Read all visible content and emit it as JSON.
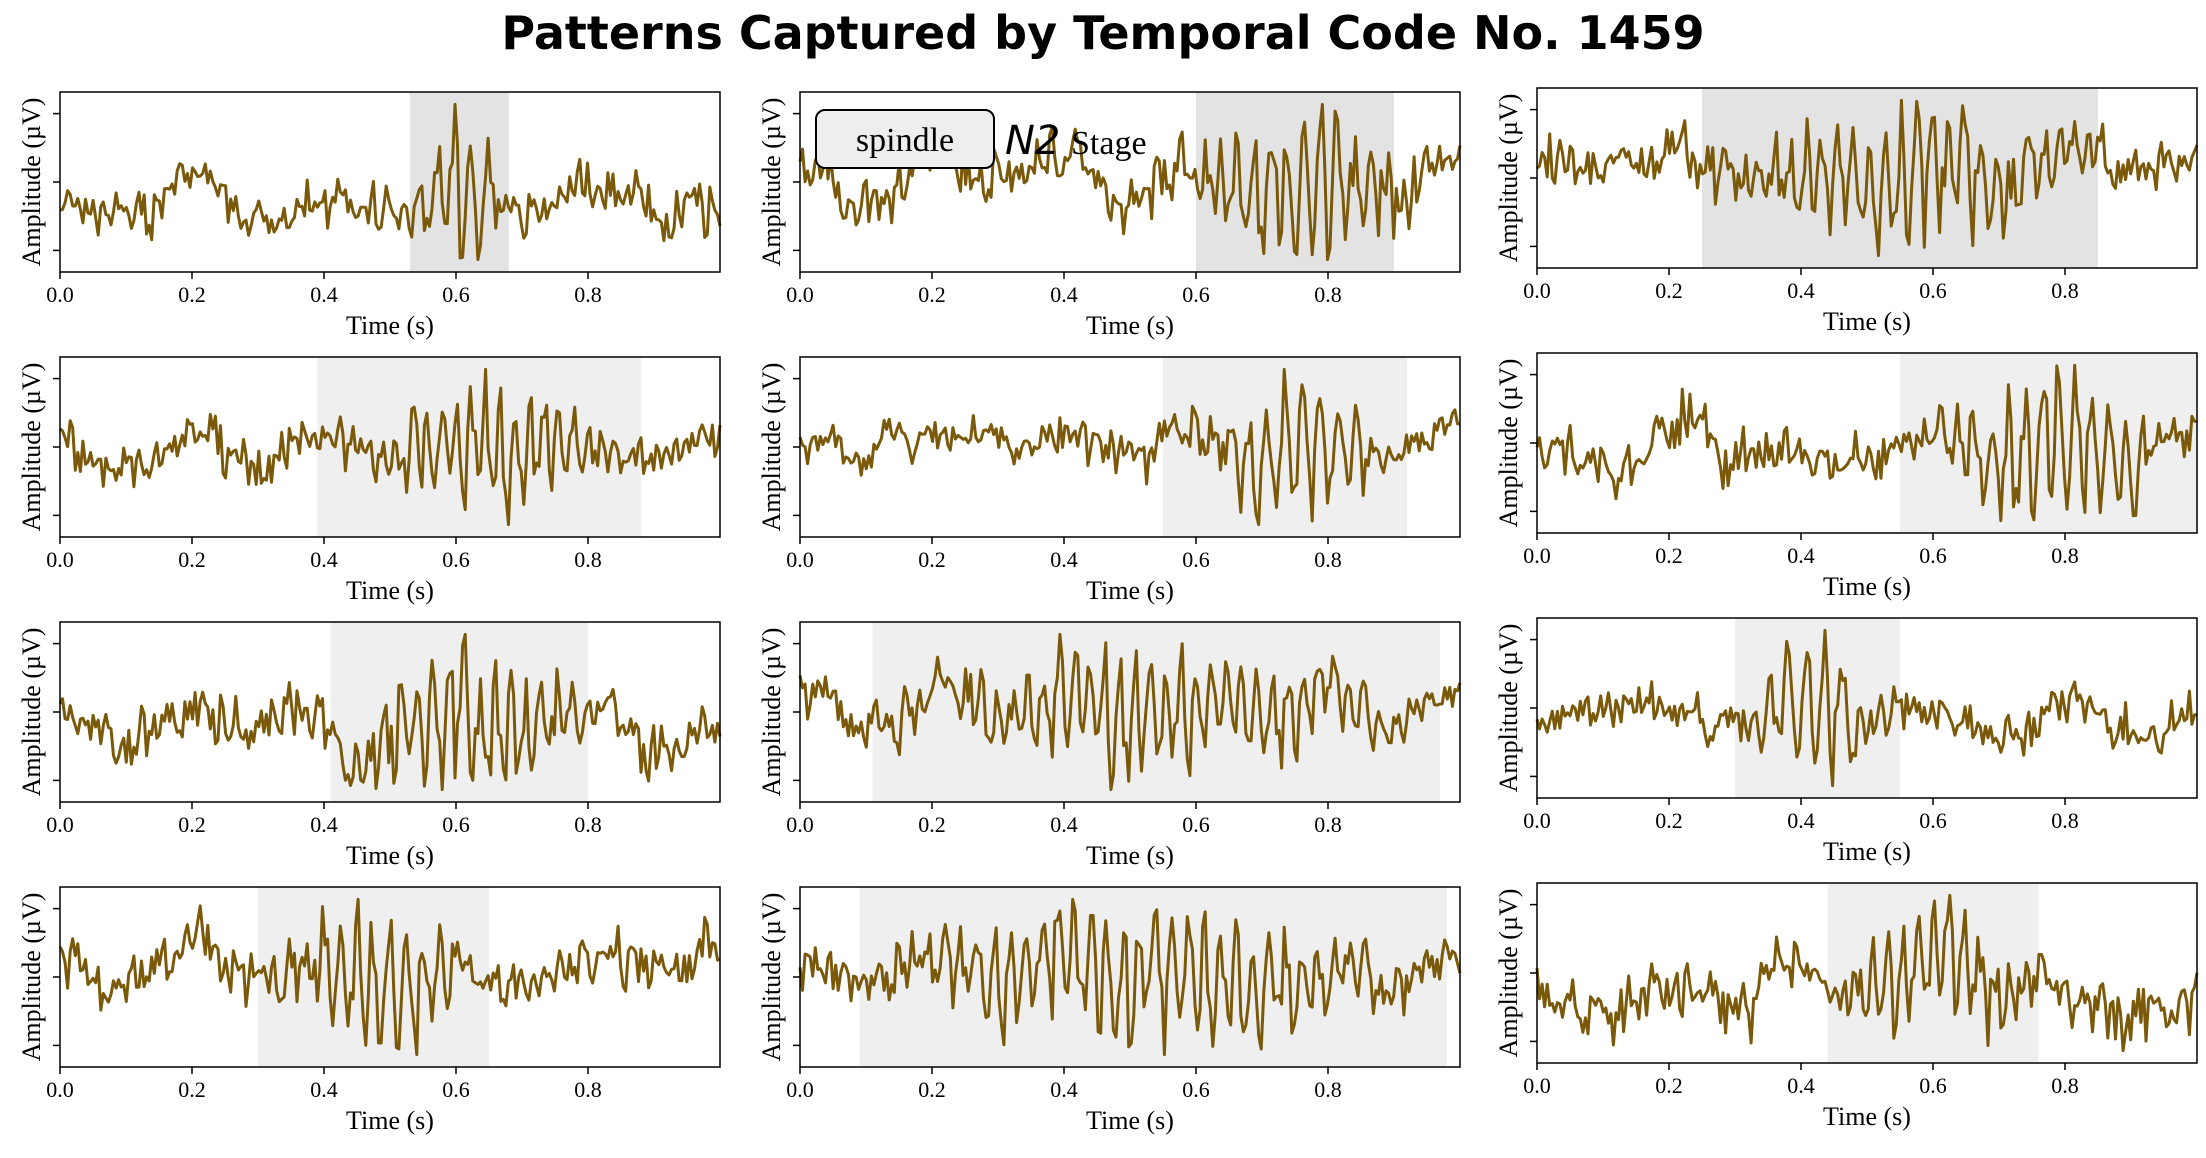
{
  "title": "Patterns Captured by Temporal Code No. 1459",
  "legend": {
    "box_label": "spindle",
    "stage_code": "N2",
    "stage_word": "Stage"
  },
  "colors": {
    "signal": "#7a5a0a",
    "highlight_dark": "#e3e3e3",
    "highlight_light": "#efefef",
    "axis": "#000000"
  },
  "chart_data": {
    "type": "line",
    "layout": "4x3 grid of subplots",
    "xlabel": "Time (s)",
    "ylabel": "Amplitude (µV)",
    "xlim": [
      0,
      1.0
    ],
    "xticks": [
      "0.0",
      "0.2",
      "0.4",
      "0.6",
      "0.8"
    ],
    "xtick_values": [
      0.0,
      0.2,
      0.4,
      0.6,
      0.8
    ],
    "y_tick_labels_shown": false,
    "panels": [
      {
        "row": 1,
        "col": 1,
        "highlight": [
          0.53,
          0.68
        ],
        "shade": "dark",
        "burst_amplitude": 1.0,
        "seed": 11
      },
      {
        "row": 1,
        "col": 2,
        "highlight": [
          0.6,
          0.9
        ],
        "shade": "dark",
        "burst_amplitude": 0.9,
        "seed": 23
      },
      {
        "row": 1,
        "col": 3,
        "highlight": [
          0.25,
          0.85
        ],
        "shade": "dark",
        "burst_amplitude": 0.9,
        "seed": 37
      },
      {
        "row": 2,
        "col": 1,
        "highlight": [
          0.39,
          0.88
        ],
        "shade": "light",
        "burst_amplitude": 0.8,
        "seed": 41
      },
      {
        "row": 2,
        "col": 2,
        "highlight": [
          0.55,
          0.92
        ],
        "shade": "light",
        "burst_amplitude": 0.9,
        "seed": 53
      },
      {
        "row": 2,
        "col": 3,
        "highlight": [
          0.55,
          1.0
        ],
        "shade": "light",
        "burst_amplitude": 0.9,
        "seed": 67
      },
      {
        "row": 3,
        "col": 1,
        "highlight": [
          0.41,
          0.8
        ],
        "shade": "light",
        "burst_amplitude": 0.9,
        "seed": 71
      },
      {
        "row": 3,
        "col": 2,
        "highlight": [
          0.11,
          0.97
        ],
        "shade": "light",
        "burst_amplitude": 0.8,
        "seed": 83
      },
      {
        "row": 3,
        "col": 3,
        "highlight": [
          0.3,
          0.55
        ],
        "shade": "light",
        "burst_amplitude": 0.8,
        "seed": 97
      },
      {
        "row": 4,
        "col": 1,
        "highlight": [
          0.3,
          0.65
        ],
        "shade": "light",
        "burst_amplitude": 0.9,
        "seed": 101
      },
      {
        "row": 4,
        "col": 2,
        "highlight": [
          0.09,
          0.98
        ],
        "shade": "light",
        "burst_amplitude": 0.8,
        "seed": 113
      },
      {
        "row": 4,
        "col": 3,
        "highlight": [
          0.44,
          0.76
        ],
        "shade": "light",
        "burst_amplitude": 0.7,
        "seed": 127
      }
    ]
  }
}
